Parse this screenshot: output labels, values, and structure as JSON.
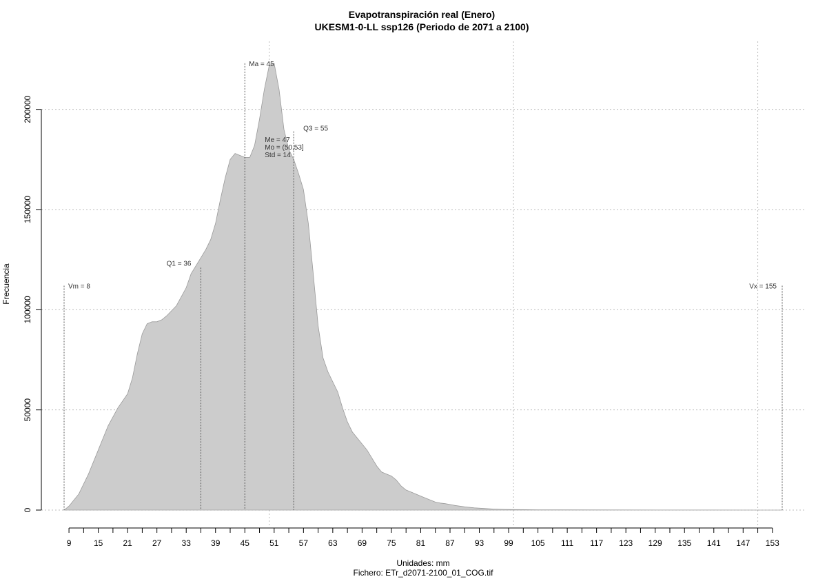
{
  "chart_data": {
    "type": "area",
    "title": "Evapotranspiración real (Enero)",
    "subtitle": "UKESM1-0-LL ssp126 (Periodo de 2071 a 2100)",
    "xlabel": "Unidades: mm",
    "caption": "Fichero: ETr_d2071-2100_01_COG.tif",
    "ylabel": "Frecuencia",
    "fill_color": "#cccccc",
    "xlim": [
      8,
      155
    ],
    "ylim": [
      0,
      225000
    ],
    "x_ticks": [
      9,
      15,
      21,
      27,
      33,
      39,
      45,
      51,
      57,
      63,
      69,
      75,
      81,
      87,
      93,
      99,
      105,
      111,
      117,
      123,
      129,
      135,
      141,
      147,
      153
    ],
    "y_ticks": [
      0,
      50000,
      100000,
      150000,
      200000
    ],
    "x_grid": [
      50,
      100,
      150
    ],
    "grid": true,
    "x": [
      8,
      9,
      11,
      13,
      15,
      17,
      19,
      21,
      22,
      23,
      24,
      25,
      26,
      27,
      28,
      29,
      31,
      33,
      34,
      35,
      36,
      37,
      38,
      39,
      40,
      41,
      42,
      43,
      44,
      45,
      46,
      47,
      48,
      49,
      50,
      51,
      52,
      53,
      54,
      55,
      56,
      57,
      58,
      59,
      60,
      61,
      62,
      63,
      64,
      65,
      66,
      67,
      68,
      69,
      70,
      71,
      72,
      73,
      74,
      75,
      76,
      77,
      78,
      79,
      80,
      81,
      82,
      83,
      84,
      85,
      86,
      87,
      88,
      90,
      92,
      94,
      96,
      98,
      100,
      105,
      110,
      120,
      130,
      140,
      150,
      155
    ],
    "y": [
      0,
      2000,
      8000,
      18000,
      30000,
      42000,
      51000,
      58000,
      66000,
      78000,
      88000,
      93000,
      94000,
      94000,
      95000,
      97000,
      102000,
      111000,
      118000,
      122000,
      126000,
      130000,
      135000,
      143000,
      155000,
      166000,
      175000,
      178000,
      177000,
      176000,
      176000,
      182000,
      195000,
      210000,
      222000,
      223000,
      210000,
      190000,
      180000,
      175000,
      168000,
      160000,
      143000,
      118000,
      92000,
      76000,
      69000,
      64000,
      59000,
      51000,
      44000,
      39000,
      36000,
      33000,
      30000,
      26000,
      22000,
      19000,
      18000,
      17000,
      15000,
      12000,
      10000,
      9000,
      8000,
      7000,
      6000,
      5000,
      4000,
      3500,
      3200,
      2800,
      2300,
      1600,
      1100,
      800,
      500,
      350,
      250,
      150,
      100,
      60,
      40,
      25,
      15,
      0
    ],
    "markers": [
      {
        "label": "Vm = 8",
        "x": 8,
        "height": 112000
      },
      {
        "label": "Q1 = 36",
        "x": 36,
        "height": 121000
      },
      {
        "label": "Ma = 45",
        "x": 45,
        "height": 223000
      },
      {
        "label": "Q3 = 55",
        "x": 55,
        "height": 189000
      },
      {
        "label": "Vx = 155",
        "x": 155,
        "height": 112000
      }
    ],
    "stats": [
      "Me = 47",
      "Mo = (50,53]",
      "Std = 14"
    ]
  }
}
